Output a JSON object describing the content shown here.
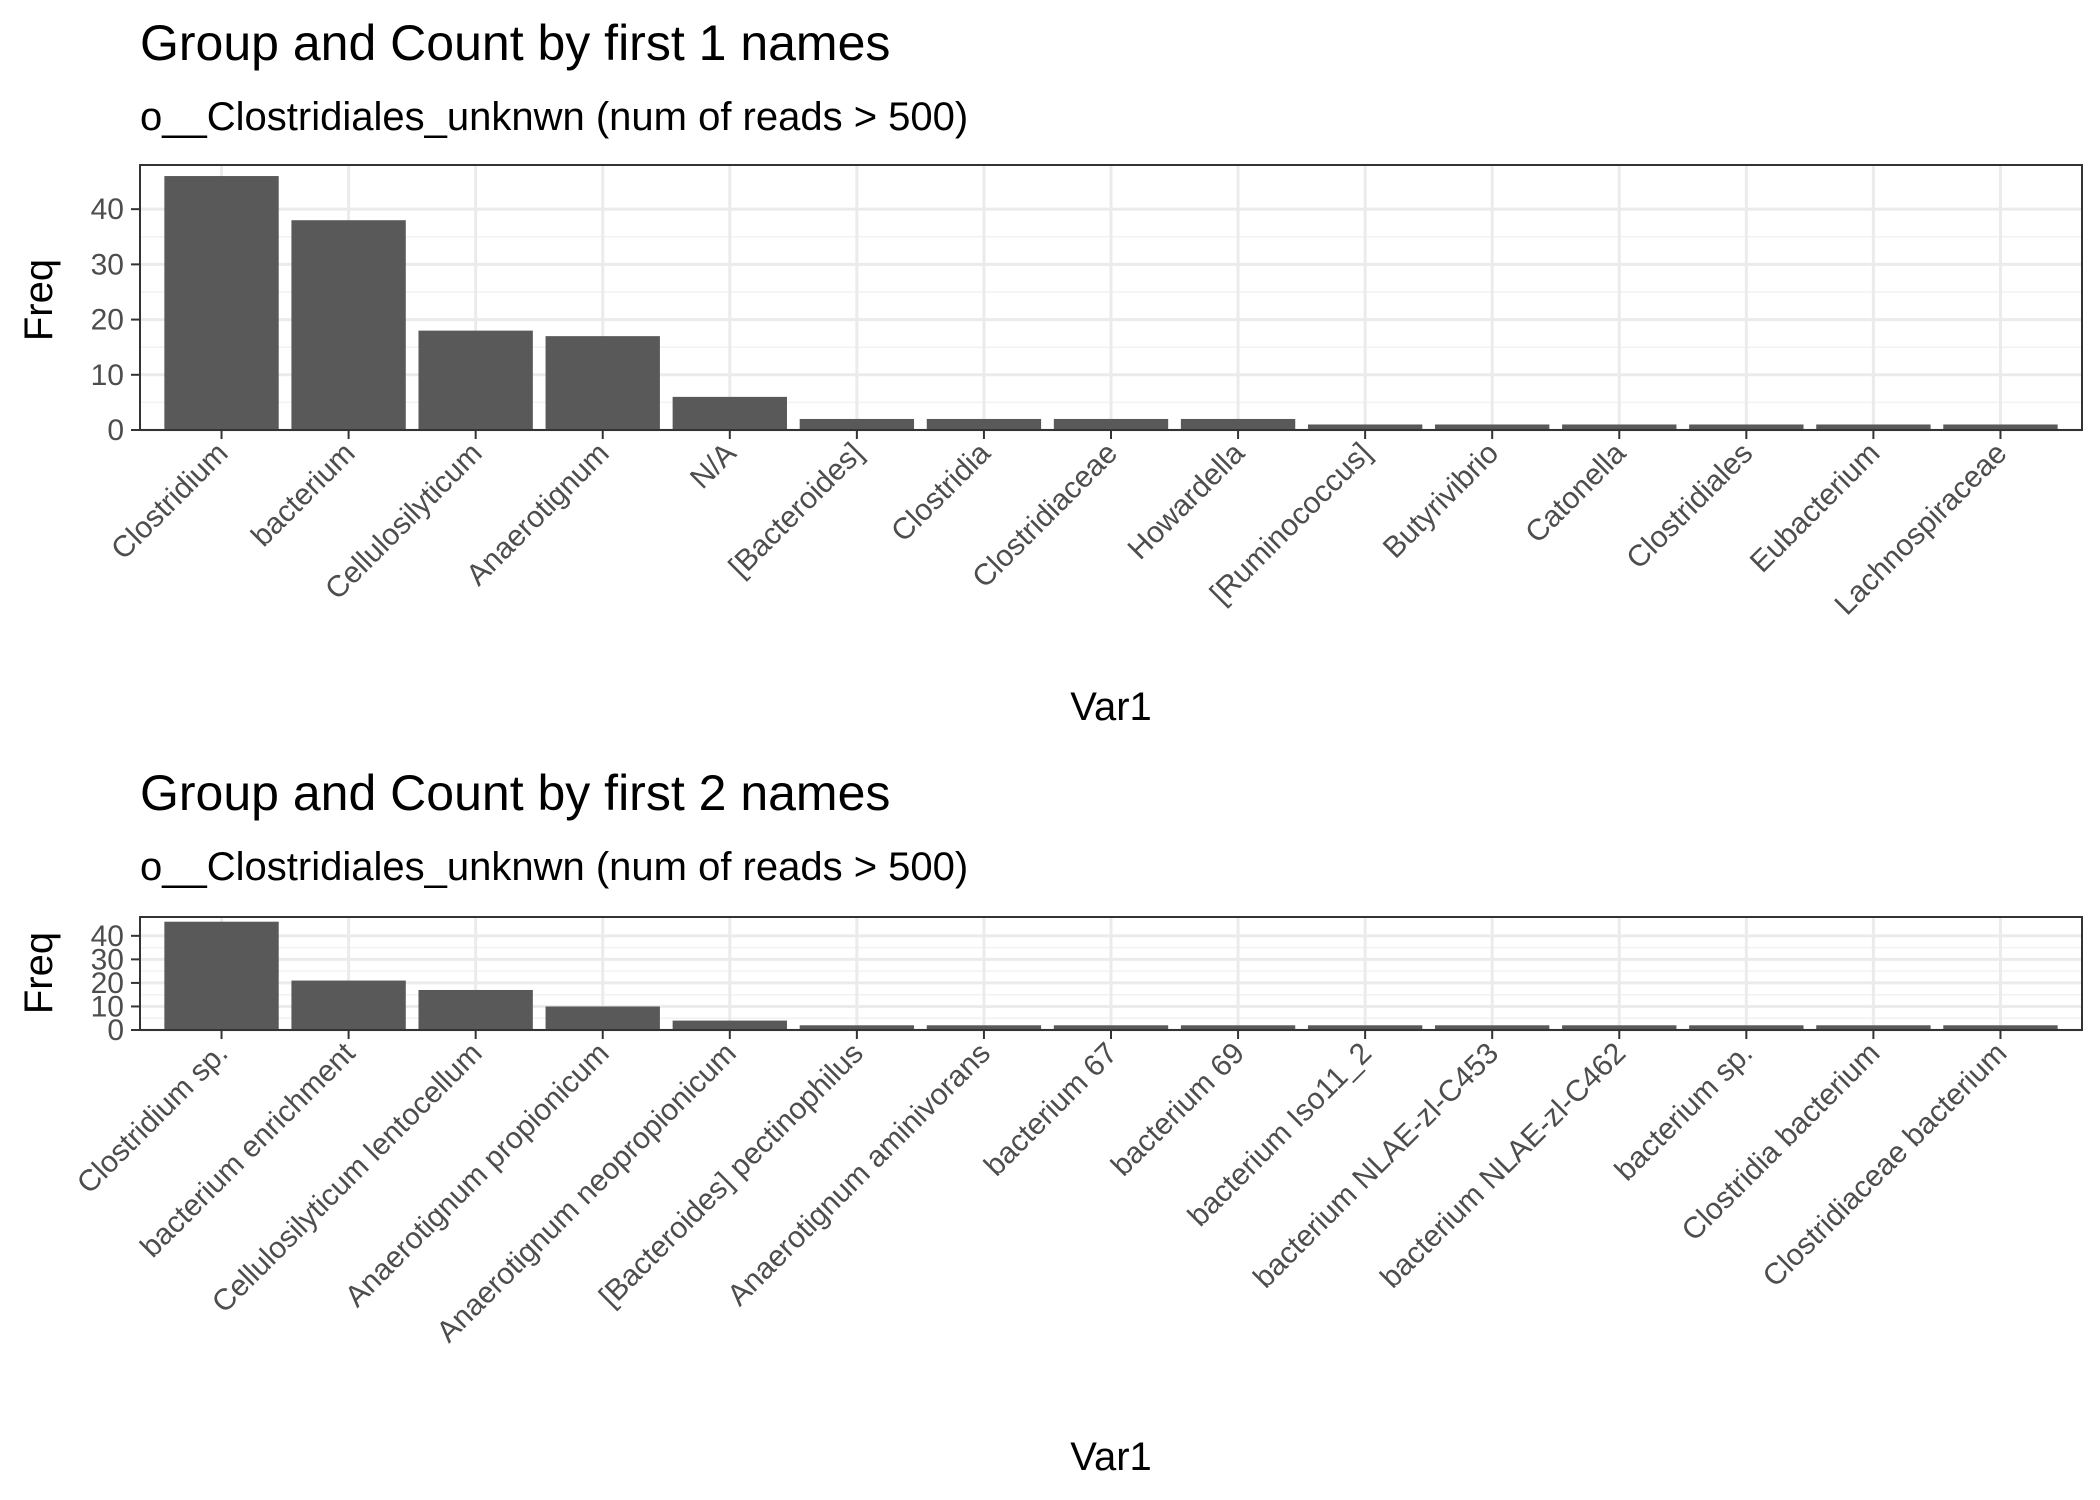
{
  "chart_data": [
    {
      "type": "bar",
      "title": "Group and Count by first 1 names",
      "subtitle": "o__Clostridiales_unknwn (num of reads > 500)",
      "xlabel": "Var1",
      "ylabel": "Freq",
      "ylim": [
        0,
        48
      ],
      "yticks": [
        0,
        10,
        20,
        30,
        40
      ],
      "grid": true,
      "categories": [
        "Clostridium",
        "bacterium",
        "Cellulosilyticum",
        "Anaerotignum",
        "N/A",
        "[Bacteroides]",
        "Clostridia",
        "Clostridiaceae",
        "Howardella",
        "[Ruminococcus]",
        "Butyrivibrio",
        "Catonella",
        "Clostridiales",
        "Eubacterium",
        "Lachnospiraceae"
      ],
      "values": [
        46,
        38,
        18,
        17,
        6,
        2,
        2,
        2,
        2,
        1,
        1,
        1,
        1,
        1,
        1
      ],
      "bar_color": "#595959"
    },
    {
      "type": "bar",
      "title": "Group and Count by first 2 names",
      "subtitle": "o__Clostridiales_unknwn (num of reads > 500)",
      "xlabel": "Var1",
      "ylabel": "Freq",
      "ylim": [
        0,
        48
      ],
      "yticks": [
        0,
        10,
        20,
        30,
        40
      ],
      "grid": true,
      "categories": [
        "Clostridium sp.",
        "bacterium enrichment",
        "Cellulosilyticum lentocellum",
        "Anaerotignum propionicum",
        "Anaerotignum neopropionicum",
        "[Bacteroides] pectinophilus",
        "Anaerotignum aminivorans",
        "bacterium 67",
        "bacterium 69",
        "bacterium Iso11_2",
        "bacterium NLAE-zl-C453",
        "bacterium NLAE-zl-C462",
        "bacterium sp.",
        "Clostridia bacterium",
        "Clostridiaceae bacterium"
      ],
      "values": [
        46,
        21,
        17,
        10,
        4,
        2,
        2,
        2,
        2,
        2,
        2,
        2,
        2,
        2,
        2
      ],
      "bar_color": "#595959"
    }
  ]
}
